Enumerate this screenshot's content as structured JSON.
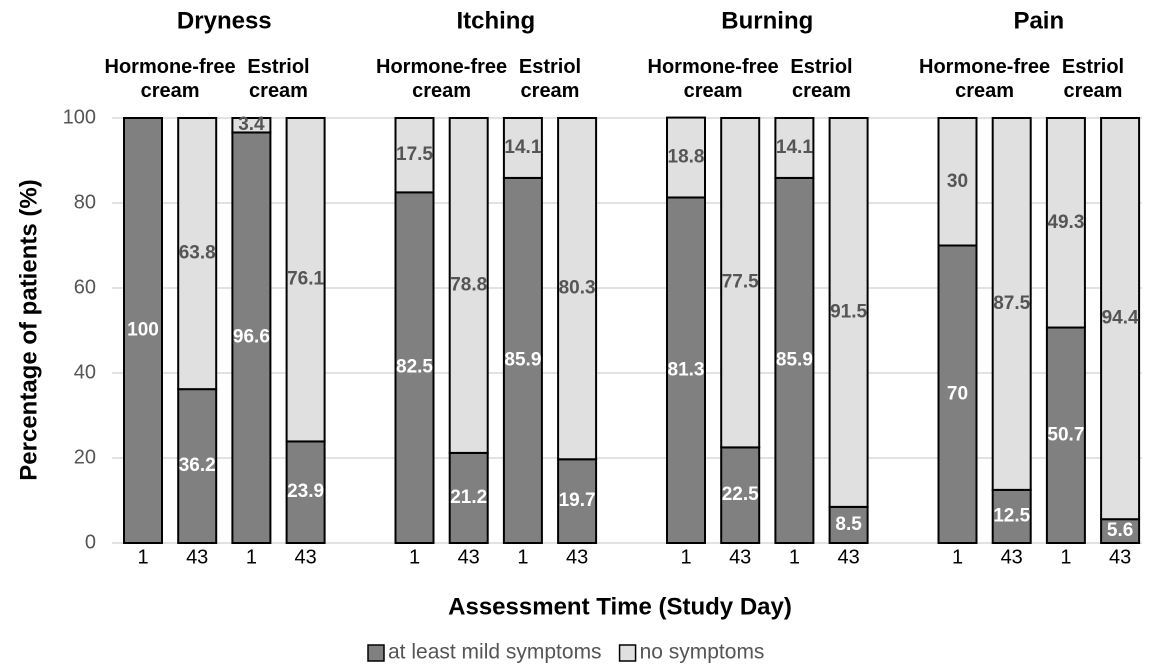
{
  "chart_data": {
    "type": "bar",
    "stacked": true,
    "groups": [
      {
        "name": "Dryness",
        "subgroups": [
          "Hormone-free cream",
          "Estriol cream"
        ]
      },
      {
        "name": "Itching",
        "subgroups": [
          "Hormone-free cream",
          "Estriol cream"
        ]
      },
      {
        "name": "Burning",
        "subgroups": [
          "Hormone-free cream",
          "Estriol cream"
        ]
      },
      {
        "name": "Pain",
        "subgroups": [
          "Hormone-free cream",
          "Estriol cream"
        ]
      }
    ],
    "categories": [
      "1",
      "43",
      "1",
      "43",
      "1",
      "43",
      "1",
      "43",
      "1",
      "43",
      "1",
      "43",
      "1",
      "43",
      "1",
      "43"
    ],
    "series": [
      {
        "name": "at least mild symptoms",
        "color": "#808080",
        "values": [
          100,
          36.2,
          96.6,
          23.9,
          82.5,
          21.2,
          85.9,
          19.7,
          81.3,
          22.5,
          85.9,
          8.5,
          70,
          12.5,
          50.7,
          5.6
        ]
      },
      {
        "name": "no symptoms",
        "color": "#e0e0e0",
        "values": [
          0,
          63.8,
          3.4,
          76.1,
          17.5,
          78.8,
          14.1,
          80.3,
          18.8,
          77.5,
          14.1,
          91.5,
          30,
          87.5,
          49.3,
          94.4
        ]
      }
    ],
    "y_label": "Percentage of patients (%)",
    "x_label": "Assessment Time (Study Day)",
    "ylim": [
      0,
      100
    ],
    "yticks": [
      0,
      20,
      40,
      60,
      80,
      100
    ],
    "grid": true,
    "legend": "bottom"
  }
}
